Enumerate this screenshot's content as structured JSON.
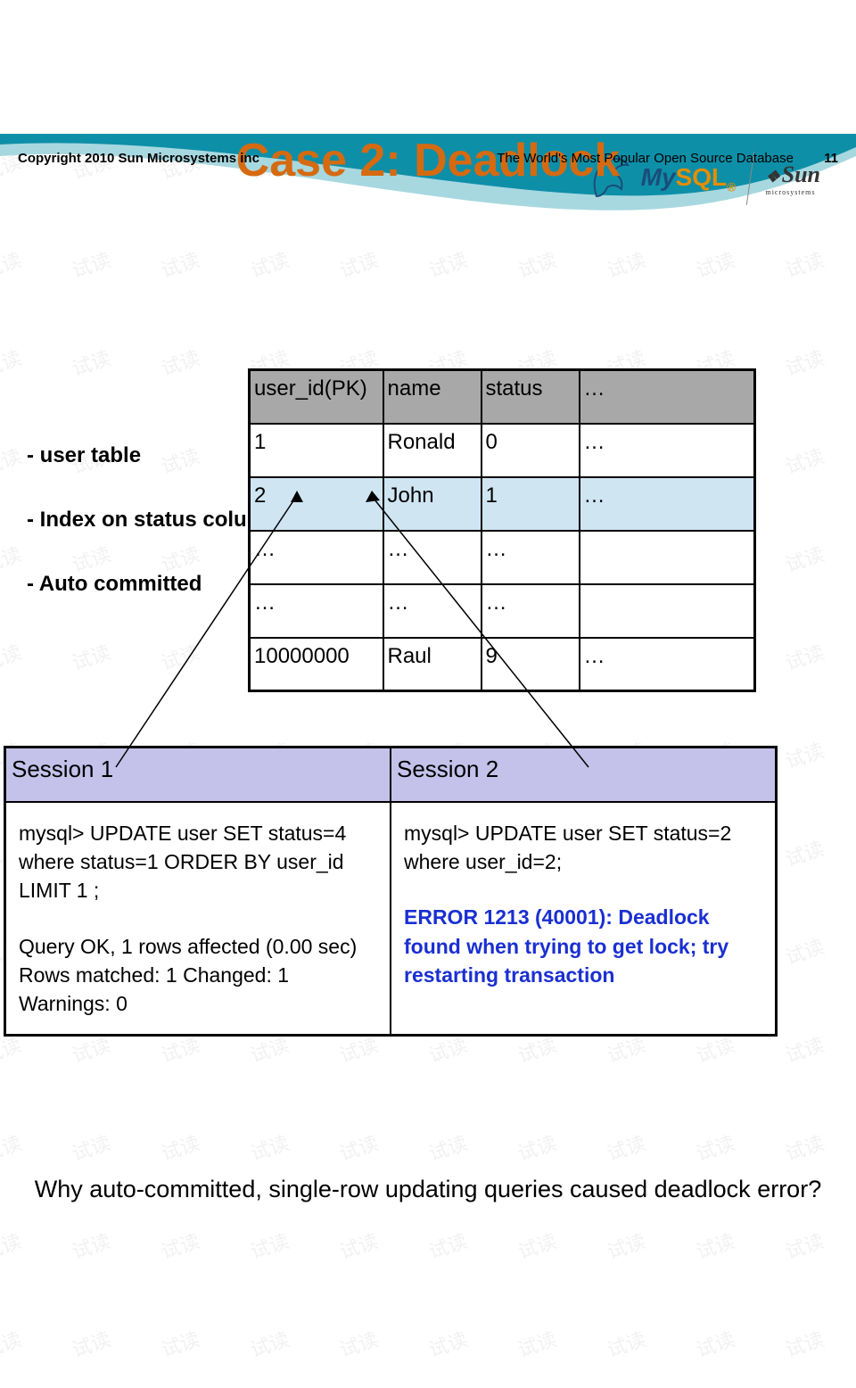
{
  "logos": {
    "mysql_my": "My",
    "mysql_sql": "SQL",
    "sun": "Sun",
    "sun_sub": "microsystems"
  },
  "title": "Case 2: Deadlock",
  "bullets": {
    "b1": "- user table",
    "b2": "- Index on status column",
    "b3": "- Auto committed"
  },
  "user_table": {
    "header_bg": "#a8a8a8",
    "highlight_bg": "#cfe5f2",
    "border_color": "#000000",
    "columns": [
      "user_id(PK)",
      "name",
      "status",
      "…"
    ],
    "rows": [
      {
        "cells": [
          "1",
          "Ronald",
          "0",
          "…"
        ],
        "highlight": false
      },
      {
        "cells": [
          "2",
          "John",
          "1",
          "…"
        ],
        "highlight": true
      },
      {
        "cells": [
          "…",
          "…",
          "…",
          ""
        ],
        "highlight": false
      },
      {
        "cells": [
          "…",
          "…",
          "…",
          ""
        ],
        "highlight": false
      },
      {
        "cells": [
          "10000000",
          "Raul",
          "9",
          "…"
        ],
        "highlight": false
      }
    ]
  },
  "session_table": {
    "header_bg": "#c4c2ea",
    "headers": [
      "Session 1",
      "Session 2"
    ],
    "s1": {
      "query": "mysql> UPDATE user SET status=4 where status=1 ORDER BY user_id LIMIT 1 ;",
      "result1": "Query OK, 1 rows affected (0.00 sec)",
      "result2": "Rows matched: 1  Changed: 1  Warnings: 0"
    },
    "s2": {
      "query": "mysql> UPDATE user SET status=2 where user_id=2;",
      "error": "ERROR 1213 (40001): Deadlock found when trying to get lock; try restarting transaction"
    },
    "error_color": "#1a2fd1"
  },
  "question": "Why auto-committed, single-row updating queries caused deadlock error?",
  "footer": {
    "left": "Copyright 2010 Sun Microsystems inc",
    "right": "The World's Most Popular Open Source Database",
    "page": "11"
  },
  "watermark_text": "试读",
  "colors": {
    "title": "#d56a11",
    "curve1": "#0e8fa8",
    "curve2": "#a7d8e0"
  }
}
